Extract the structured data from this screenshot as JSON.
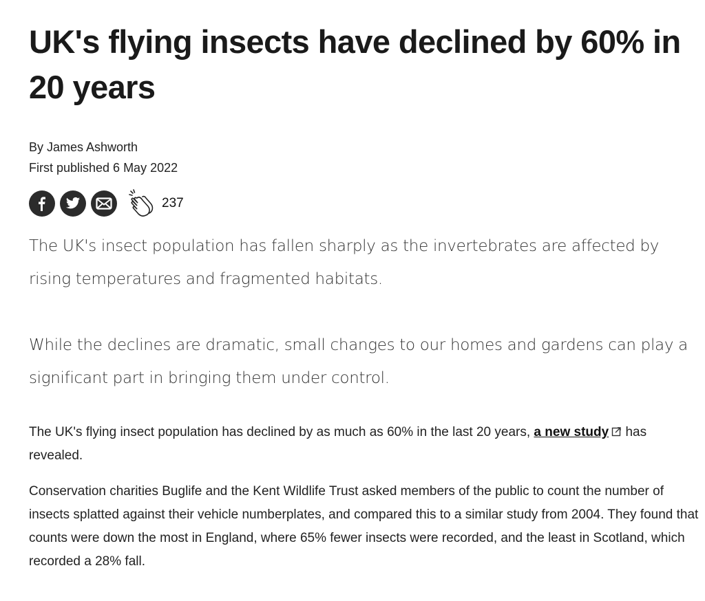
{
  "article": {
    "title": "UK's flying insects have declined by 60% in 20 years",
    "author": "By James Ashworth",
    "published": "First published 6 May 2022",
    "share": {
      "icons": [
        "facebook-icon",
        "twitter-icon",
        "email-icon",
        "clap-icon"
      ],
      "clap_count": "237"
    },
    "standfirst": [
      "The UK's insect population has fallen sharply as the invertebrates are affected by rising temperatures and fragmented habitats.",
      "While the declines are dramatic, small changes to our homes and gardens can play a significant part in bringing them under control."
    ],
    "body": {
      "p1_before": "The UK's flying insect population has declined by as much as 60% in the last 20 years, ",
      "p1_link": "a new study",
      "p1_after": " has revealed.",
      "p2": "Conservation charities Buglife and the Kent Wildlife Trust asked members of the public to count the number of insects splatted against their vehicle numberplates, and compared this to a similar study from 2004. They found that counts were down the most in England, where 65% fewer insects were recorded, and the least in Scotland, which recorded a 28% fall."
    }
  }
}
